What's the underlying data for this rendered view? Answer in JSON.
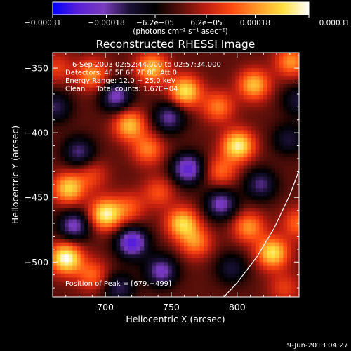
{
  "chart_data": {
    "type": "heatmap",
    "title": "Reconstructed RHESSI Image",
    "xlabel": "Heliocentric X (arcsec)",
    "ylabel": "Heliocentric Y (arcsec)",
    "xlim": [
      660,
      847
    ],
    "ylim": [
      -527,
      -338
    ],
    "x_ticks": [
      {
        "value": 700,
        "label": "700"
      },
      {
        "value": 750,
        "label": "750"
      },
      {
        "value": 800,
        "label": "800"
      }
    ],
    "y_ticks": [
      {
        "value": -350,
        "label": "−350"
      },
      {
        "value": -400,
        "label": "−400"
      },
      {
        "value": -450,
        "label": "−450"
      },
      {
        "value": -500,
        "label": "−500"
      }
    ],
    "colorbar": {
      "range": [
        -0.00031,
        0.00031
      ],
      "tick_labels": [
        "−0.00031",
        "−0.00018",
        "−6.2e−05",
        "6.2e−05",
        "0.00018",
        "0.00031"
      ],
      "tick_values": [
        -0.00031,
        -0.00018,
        -6.2e-05,
        6.2e-05,
        0.00018,
        0.00031
      ],
      "unit_label": "(photons cm⁻² s⁻¹ asec⁻²)",
      "stops": [
        "#0000ff",
        "#5a20d8",
        "#7a3cbe",
        "#1a1035",
        "#000000",
        "#5a0f0a",
        "#c01e10",
        "#ff4a10",
        "#ff9a28",
        "#ffe040",
        "#ffffff"
      ]
    },
    "info_lines": [
      "6-Sep-2003 02:52:44.000 to 02:57:34.000",
      "Detectors: 4F 5F 6F 7F 8F, Att 0",
      "Energy Range: 12.0 − 25.0 keV",
      "Clean     Total counts: 1.67E+04"
    ],
    "peak_label": "Position of Peak = [679,−499]",
    "peak_position": [
      679,
      -499
    ],
    "limb_curve": [
      [
        790,
        -527
      ],
      [
        800,
        -516
      ],
      [
        815,
        -496
      ],
      [
        828,
        -474
      ],
      [
        840,
        -448
      ],
      [
        847,
        -429
      ]
    ],
    "sources": [
      {
        "x": 663,
        "y": -350,
        "value": 0.0001
      },
      {
        "x": 690,
        "y": -355,
        "value": 0.00018
      },
      {
        "x": 735,
        "y": -350,
        "value": 0.00022
      },
      {
        "x": 760,
        "y": -368,
        "value": 0.00026
      },
      {
        "x": 785,
        "y": -380,
        "value": 0.00016
      },
      {
        "x": 812,
        "y": -363,
        "value": 0.00022
      },
      {
        "x": 840,
        "y": -345,
        "value": 0.00018
      },
      {
        "x": 718,
        "y": -394,
        "value": 0.00022
      },
      {
        "x": 732,
        "y": -413,
        "value": 0.00016
      },
      {
        "x": 800,
        "y": -410,
        "value": 0.00028
      },
      {
        "x": 787,
        "y": -430,
        "value": 0.00014
      },
      {
        "x": 690,
        "y": -433,
        "value": 0.0001
      },
      {
        "x": 672,
        "y": -443,
        "value": 0.00024
      },
      {
        "x": 700,
        "y": -463,
        "value": 0.00028
      },
      {
        "x": 718,
        "y": -458,
        "value": 0.00012
      },
      {
        "x": 758,
        "y": -470,
        "value": 0.00024
      },
      {
        "x": 768,
        "y": -485,
        "value": 0.00016
      },
      {
        "x": 740,
        "y": -446,
        "value": 0.00012
      },
      {
        "x": 808,
        "y": -473,
        "value": 0.00018
      },
      {
        "x": 826,
        "y": -493,
        "value": 0.00026
      },
      {
        "x": 670,
        "y": -497,
        "value": 0.00031
      },
      {
        "x": 690,
        "y": -510,
        "value": 0.00014
      },
      {
        "x": 845,
        "y": -375,
        "value": -0.00012
      },
      {
        "x": 845,
        "y": -470,
        "value": 0.00014
      },
      {
        "x": 835,
        "y": -520,
        "value": 0.0001
      },
      {
        "x": 708,
        "y": -372,
        "value": -0.0002
      },
      {
        "x": 748,
        "y": -388,
        "value": -0.00018
      },
      {
        "x": 680,
        "y": -415,
        "value": -0.00016
      },
      {
        "x": 762,
        "y": -428,
        "value": -0.00024
      },
      {
        "x": 817,
        "y": -440,
        "value": -0.00016
      },
      {
        "x": 676,
        "y": -472,
        "value": -0.0002
      },
      {
        "x": 720,
        "y": -485,
        "value": -0.00026
      },
      {
        "x": 742,
        "y": -507,
        "value": -0.0002
      },
      {
        "x": 787,
        "y": -455,
        "value": -0.0002
      },
      {
        "x": 710,
        "y": -520,
        "value": -0.00014
      },
      {
        "x": 795,
        "y": -505,
        "value": -0.00012
      },
      {
        "x": 662,
        "y": -380,
        "value": -0.00014
      },
      {
        "x": 838,
        "y": -405,
        "value": -0.00012
      }
    ]
  },
  "footer": {
    "timestamp": "9-Jun-2013 04:27"
  }
}
